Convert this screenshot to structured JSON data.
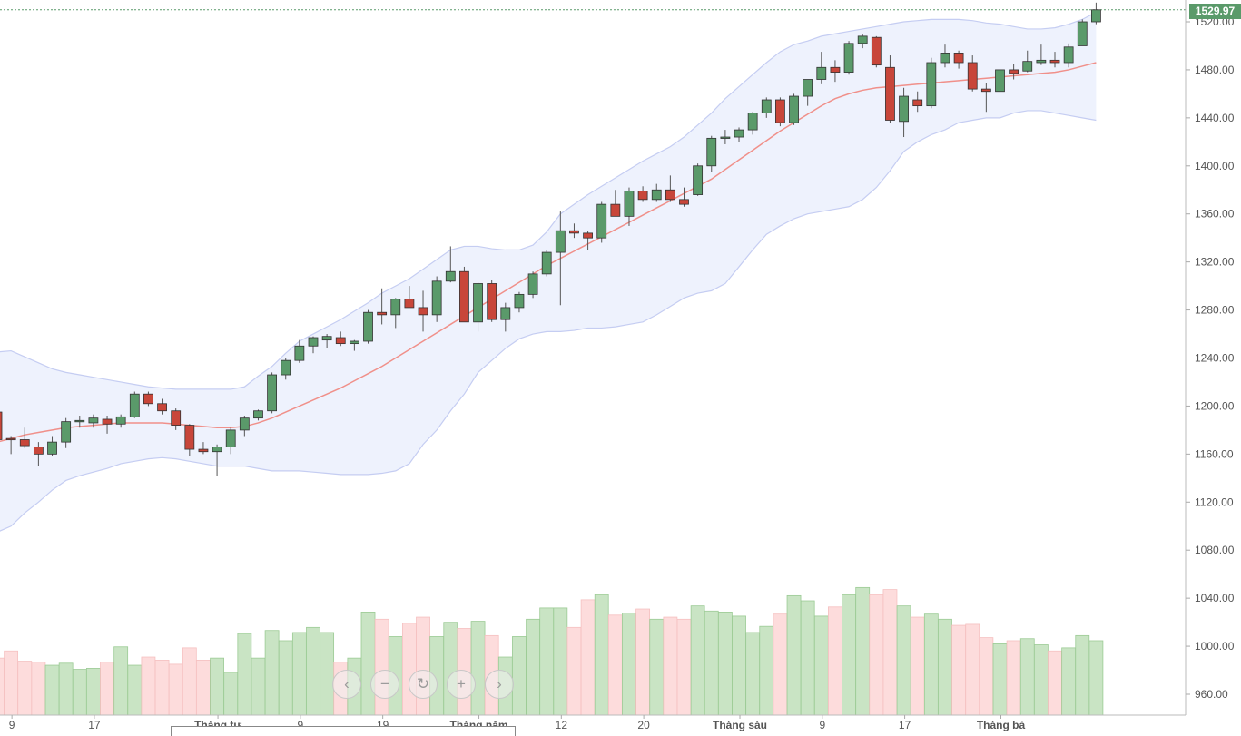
{
  "chart_data": {
    "type": "candlestick",
    "price_axis": {
      "ticks": [
        "960.00",
        "1000.00",
        "1040.00",
        "1080.00",
        "1120.00",
        "1160.00",
        "1200.00",
        "1240.00",
        "1280.00",
        "1320.00",
        "1360.00",
        "1400.00",
        "1440.00",
        "1480.00",
        "1520.00"
      ],
      "ylim": [
        950,
        1535
      ]
    },
    "last_price": "1529.97",
    "x_ticks": [
      {
        "label": "9",
        "i": 1
      },
      {
        "label": "17",
        "i": 7
      },
      {
        "label": "Tháng tư",
        "i": 16
      },
      {
        "label": "9",
        "i": 22
      },
      {
        "label": "19",
        "i": 28
      },
      {
        "label": "Tháng năm",
        "i": 35
      },
      {
        "label": "12",
        "i": 41
      },
      {
        "label": "20",
        "i": 47
      },
      {
        "label": "Tháng sáu",
        "i": 54
      },
      {
        "label": "9",
        "i": 60
      },
      {
        "label": "17",
        "i": 66
      },
      {
        "label": "Tháng bả",
        "i": 73
      }
    ],
    "candles": [
      [
        1195,
        1197,
        1170,
        1172
      ],
      [
        1173,
        1175,
        1160,
        1172
      ],
      [
        1172,
        1182,
        1165,
        1167
      ],
      [
        1166,
        1170,
        1150,
        1160
      ],
      [
        1160,
        1175,
        1158,
        1170
      ],
      [
        1170,
        1190,
        1165,
        1187
      ],
      [
        1187,
        1192,
        1182,
        1188
      ],
      [
        1186,
        1193,
        1182,
        1190
      ],
      [
        1189,
        1192,
        1177,
        1185
      ],
      [
        1185,
        1193,
        1182,
        1191
      ],
      [
        1191,
        1212,
        1190,
        1210
      ],
      [
        1210,
        1212,
        1200,
        1202
      ],
      [
        1202,
        1206,
        1193,
        1196
      ],
      [
        1196,
        1198,
        1180,
        1184
      ],
      [
        1184,
        1185,
        1158,
        1164
      ],
      [
        1164,
        1170,
        1160,
        1162
      ],
      [
        1162,
        1168,
        1142,
        1166
      ],
      [
        1166,
        1182,
        1160,
        1180
      ],
      [
        1180,
        1192,
        1175,
        1190
      ],
      [
        1190,
        1197,
        1188,
        1196
      ],
      [
        1196,
        1228,
        1194,
        1226
      ],
      [
        1226,
        1240,
        1222,
        1238
      ],
      [
        1238,
        1255,
        1236,
        1250
      ],
      [
        1250,
        1258,
        1244,
        1257
      ],
      [
        1255,
        1260,
        1248,
        1258
      ],
      [
        1257,
        1262,
        1250,
        1252
      ],
      [
        1252,
        1255,
        1246,
        1254
      ],
      [
        1254,
        1280,
        1252,
        1278
      ],
      [
        1278,
        1298,
        1268,
        1276
      ],
      [
        1276,
        1290,
        1265,
        1289
      ],
      [
        1289,
        1300,
        1282,
        1282
      ],
      [
        1282,
        1296,
        1262,
        1276
      ],
      [
        1276,
        1308,
        1270,
        1304
      ],
      [
        1304,
        1333,
        1303,
        1312
      ],
      [
        1312,
        1316,
        1270,
        1270
      ],
      [
        1270,
        1303,
        1262,
        1302
      ],
      [
        1302,
        1305,
        1270,
        1272
      ],
      [
        1272,
        1286,
        1262,
        1282
      ],
      [
        1282,
        1295,
        1278,
        1293
      ],
      [
        1293,
        1312,
        1290,
        1310
      ],
      [
        1310,
        1330,
        1308,
        1328
      ],
      [
        1328,
        1362,
        1284,
        1346
      ],
      [
        1346,
        1352,
        1340,
        1344
      ],
      [
        1344,
        1346,
        1330,
        1340
      ],
      [
        1340,
        1370,
        1336,
        1368
      ],
      [
        1368,
        1380,
        1358,
        1358
      ],
      [
        1358,
        1382,
        1350,
        1379
      ],
      [
        1379,
        1383,
        1370,
        1372
      ],
      [
        1372,
        1385,
        1370,
        1380
      ],
      [
        1380,
        1392,
        1370,
        1372
      ],
      [
        1372,
        1382,
        1366,
        1368
      ],
      [
        1376,
        1402,
        1375,
        1400
      ],
      [
        1400,
        1425,
        1395,
        1423
      ],
      [
        1423,
        1430,
        1418,
        1424
      ],
      [
        1424,
        1432,
        1420,
        1430
      ],
      [
        1430,
        1445,
        1426,
        1444
      ],
      [
        1444,
        1457,
        1440,
        1455
      ],
      [
        1455,
        1457,
        1433,
        1436
      ],
      [
        1436,
        1460,
        1434,
        1458
      ],
      [
        1458,
        1472,
        1450,
        1472
      ],
      [
        1472,
        1495,
        1468,
        1482
      ],
      [
        1482,
        1488,
        1470,
        1478
      ],
      [
        1478,
        1504,
        1476,
        1502
      ],
      [
        1502,
        1510,
        1498,
        1508
      ],
      [
        1507,
        1508,
        1482,
        1484
      ],
      [
        1482,
        1492,
        1436,
        1438
      ],
      [
        1437,
        1465,
        1424,
        1458
      ],
      [
        1455,
        1462,
        1445,
        1450
      ],
      [
        1450,
        1490,
        1448,
        1486
      ],
      [
        1486,
        1501,
        1482,
        1494
      ],
      [
        1494,
        1496,
        1481,
        1486
      ],
      [
        1486,
        1492,
        1462,
        1464
      ],
      [
        1464,
        1469,
        1445,
        1462
      ],
      [
        1462,
        1483,
        1458,
        1480
      ],
      [
        1480,
        1485,
        1472,
        1477
      ],
      [
        1479,
        1496,
        1478,
        1487
      ],
      [
        1486,
        1501,
        1484,
        1488
      ],
      [
        1488,
        1495,
        1482,
        1486
      ],
      [
        1486,
        1502,
        1482,
        1499
      ],
      [
        1500,
        1522,
        1500,
        1520
      ],
      [
        1520,
        1536,
        1518,
        1530
      ]
    ],
    "volume_pct": [
      0.38,
      0.45,
      0.35,
      0.34,
      0.31,
      0.33,
      0.27,
      0.28,
      0.34,
      0.49,
      0.31,
      0.39,
      0.36,
      0.32,
      0.48,
      0.36,
      0.38,
      0.24,
      0.62,
      0.38,
      0.65,
      0.55,
      0.63,
      0.68,
      0.63,
      0.34,
      0.38,
      0.83,
      0.76,
      0.59,
      0.72,
      0.78,
      0.59,
      0.73,
      0.67,
      0.74,
      0.6,
      0.39,
      0.59,
      0.76,
      0.87,
      0.87,
      0.68,
      0.95,
      1.0,
      0.8,
      0.82,
      0.86,
      0.76,
      0.78,
      0.76,
      0.89,
      0.84,
      0.83,
      0.79,
      0.63,
      0.69,
      0.81,
      0.99,
      0.94,
      0.79,
      0.88,
      1.0,
      1.07,
      1.0,
      1.05,
      0.89,
      0.78,
      0.81,
      0.76,
      0.7,
      0.71,
      0.58,
      0.52,
      0.55,
      0.57,
      0.51,
      0.45,
      0.48,
      0.6,
      0.55
    ],
    "sma": [
      1170,
      1173,
      1176,
      1178,
      1180,
      1182,
      1183,
      1184,
      1185,
      1186,
      1186,
      1186,
      1186,
      1185,
      1184,
      1183,
      1182,
      1182,
      1183,
      1186,
      1190,
      1195,
      1200,
      1205,
      1210,
      1215,
      1221,
      1227,
      1233,
      1240,
      1247,
      1254,
      1261,
      1268,
      1275,
      1282,
      1289,
      1296,
      1303,
      1310,
      1317,
      1323,
      1329,
      1335,
      1341,
      1347,
      1353,
      1359,
      1365,
      1371,
      1377,
      1383,
      1389,
      1397,
      1405,
      1413,
      1421,
      1429,
      1436,
      1443,
      1450,
      1456,
      1460,
      1463,
      1465,
      1466,
      1467,
      1468,
      1469,
      1470,
      1471,
      1472,
      1473,
      1474,
      1475,
      1476,
      1477,
      1478,
      1480,
      1483,
      1486
    ],
    "upper_band": [
      1245,
      1246,
      1241,
      1236,
      1231,
      1228,
      1226,
      1224,
      1222,
      1220,
      1218,
      1216,
      1215,
      1214,
      1214,
      1214,
      1214,
      1214,
      1216,
      1225,
      1233,
      1244,
      1254,
      1260,
      1266,
      1272,
      1279,
      1286,
      1294,
      1300,
      1306,
      1314,
      1322,
      1330,
      1333,
      1333,
      1331,
      1330,
      1330,
      1334,
      1345,
      1360,
      1368,
      1376,
      1383,
      1390,
      1397,
      1404,
      1410,
      1416,
      1424,
      1434,
      1444,
      1456,
      1466,
      1476,
      1486,
      1495,
      1501,
      1504,
      1508,
      1510,
      1512,
      1514,
      1516,
      1518,
      1520,
      1521,
      1522,
      1522,
      1522,
      1521,
      1519,
      1518,
      1516,
      1514,
      1514,
      1515,
      1518,
      1522,
      1528
    ],
    "lower_band": [
      1095,
      1100,
      1111,
      1120,
      1130,
      1138,
      1142,
      1145,
      1148,
      1152,
      1154,
      1156,
      1157,
      1156,
      1154,
      1152,
      1150,
      1150,
      1150,
      1148,
      1146,
      1146,
      1146,
      1145,
      1144,
      1143,
      1143,
      1143,
      1144,
      1146,
      1152,
      1168,
      1180,
      1196,
      1210,
      1228,
      1238,
      1248,
      1256,
      1260,
      1262,
      1262,
      1263,
      1265,
      1265,
      1266,
      1268,
      1270,
      1276,
      1283,
      1290,
      1294,
      1296,
      1302,
      1316,
      1330,
      1343,
      1350,
      1356,
      1360,
      1362,
      1364,
      1366,
      1372,
      1382,
      1396,
      1412,
      1420,
      1426,
      1430,
      1436,
      1438,
      1440,
      1440,
      1444,
      1446,
      1446,
      1444,
      1442,
      1440,
      1438
    ]
  },
  "navigation": {
    "prev_icon": "chevron-left-icon",
    "zoom_out_icon": "minus-icon",
    "reset_icon": "refresh-icon",
    "zoom_in_icon": "plus-icon",
    "next_icon": "chevron-right-icon"
  },
  "colors": {
    "up": "#5a9a6a",
    "down": "#c8463a",
    "up_volume": "#c9e4c4",
    "down_volume": "#fddcdc",
    "band_fill": "#eef2fd",
    "band_line": "#c5cdf2",
    "sma_line": "#f0908a"
  }
}
